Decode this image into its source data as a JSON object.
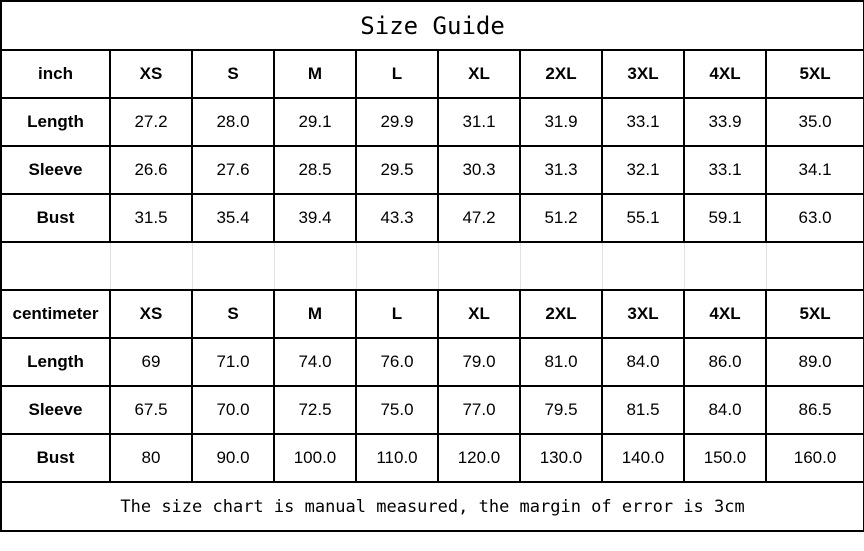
{
  "title": "Size Guide",
  "sizes": [
    "XS",
    "S",
    "M",
    "L",
    "XL",
    "2XL",
    "3XL",
    "4XL",
    "5XL"
  ],
  "inch": {
    "unit_label": "inch",
    "rows": [
      {
        "label": "Length",
        "values": [
          "27.2",
          "28.0",
          "29.1",
          "29.9",
          "31.1",
          "31.9",
          "33.1",
          "33.9",
          "35.0"
        ]
      },
      {
        "label": "Sleeve",
        "values": [
          "26.6",
          "27.6",
          "28.5",
          "29.5",
          "30.3",
          "31.3",
          "32.1",
          "33.1",
          "34.1"
        ]
      },
      {
        "label": "Bust",
        "values": [
          "31.5",
          "35.4",
          "39.4",
          "43.3",
          "47.2",
          "51.2",
          "55.1",
          "59.1",
          "63.0"
        ]
      }
    ]
  },
  "centimeter": {
    "unit_label": "centimeter",
    "rows": [
      {
        "label": "Length",
        "values": [
          "69",
          "71.0",
          "74.0",
          "76.0",
          "79.0",
          "81.0",
          "84.0",
          "86.0",
          "89.0"
        ]
      },
      {
        "label": "Sleeve",
        "values": [
          "67.5",
          "70.0",
          "72.5",
          "75.0",
          "77.0",
          "79.5",
          "81.5",
          "84.0",
          "86.5"
        ]
      },
      {
        "label": "Bust",
        "values": [
          "80",
          "90.0",
          "100.0",
          "110.0",
          "120.0",
          "130.0",
          "140.0",
          "150.0",
          "160.0"
        ]
      }
    ]
  },
  "note": "The size chart is manual measured, the margin of error is 3cm"
}
